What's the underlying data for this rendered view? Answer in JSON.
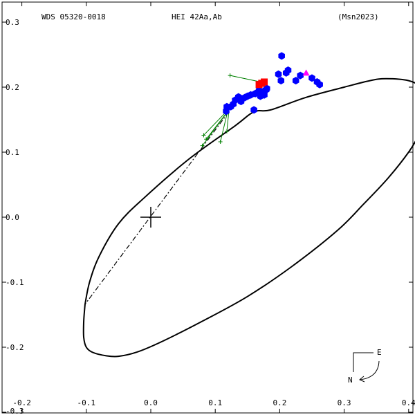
{
  "header": {
    "wds": "WDS 05320-0018",
    "name": "HEI  42Aa,Ab",
    "ref": "(Msn2023)"
  },
  "compass": {
    "east": "E",
    "north": "N"
  },
  "chart_data": {
    "type": "scatter",
    "title": "",
    "xlabel": "",
    "ylabel": "",
    "xlim": [
      -0.2,
      0.4
    ],
    "ylim": [
      -0.3,
      0.3
    ],
    "x_reversed": false,
    "x_ticks": [
      {
        "v": -0.2,
        "label": "-0.2"
      },
      {
        "v": -0.1,
        "label": "-0.1"
      },
      {
        "v": 0.0,
        "label": "0.0"
      },
      {
        "v": 0.1,
        "label": "0.1"
      },
      {
        "v": 0.2,
        "label": "0.2"
      },
      {
        "v": 0.3,
        "label": "0.3"
      },
      {
        "v": 0.4,
        "label": "0.4"
      }
    ],
    "y_ticks": [
      {
        "v": 0.3,
        "label": "0.3"
      },
      {
        "v": 0.2,
        "label": "0.2"
      },
      {
        "v": 0.1,
        "label": "0.1"
      },
      {
        "v": 0.0,
        "label": "0.0"
      },
      {
        "v": -0.1,
        "label": "-0.1"
      },
      {
        "v": -0.2,
        "label": "-0.2"
      },
      {
        "v": -0.3,
        "label": "-0.3"
      }
    ],
    "bottom_left_label": "-0.3",
    "primary": [
      0.0,
      0.0
    ],
    "orbit": {
      "points": [
        [
          -0.102,
          -0.134
        ],
        [
          -0.104,
          -0.16
        ],
        [
          -0.104,
          -0.185
        ],
        [
          -0.1,
          -0.2
        ],
        [
          -0.09,
          -0.208
        ],
        [
          -0.07,
          -0.213
        ],
        [
          -0.05,
          -0.214
        ],
        [
          -0.02,
          -0.207
        ],
        [
          0.02,
          -0.19
        ],
        [
          0.08,
          -0.16
        ],
        [
          0.15,
          -0.122
        ],
        [
          0.22,
          -0.075
        ],
        [
          0.29,
          -0.02
        ],
        [
          0.33,
          0.02
        ],
        [
          0.368,
          0.06
        ],
        [
          0.4,
          0.1
        ],
        [
          0.415,
          0.125
        ],
        [
          0.432,
          0.16
        ],
        [
          0.43,
          0.185
        ],
        [
          0.42,
          0.2
        ],
        [
          0.4,
          0.21
        ],
        [
          0.365,
          0.213
        ],
        [
          0.34,
          0.21
        ],
        [
          0.3,
          0.2
        ],
        [
          0.24,
          0.184
        ],
        [
          0.186,
          0.165
        ],
        [
          0.16,
          0.162
        ],
        [
          0.13,
          0.14
        ],
        [
          0.06,
          0.09
        ],
        [
          -0.01,
          0.03
        ],
        [
          -0.05,
          -0.01
        ],
        [
          -0.08,
          -0.06
        ],
        [
          -0.095,
          -0.1
        ],
        [
          -0.102,
          -0.134
        ]
      ],
      "color": "#000000"
    },
    "line_of_apsides": [
      [
        0.121,
        0.162
      ],
      [
        -0.102,
        -0.134
      ]
    ],
    "series": [
      {
        "marker": "hexagon",
        "color": "#0000ff",
        "points": [
          [
            0.203,
            0.248
          ],
          [
            0.213,
            0.226
          ],
          [
            0.21,
            0.222
          ],
          [
            0.198,
            0.22
          ],
          [
            0.202,
            0.21
          ],
          [
            0.225,
            0.21
          ],
          [
            0.232,
            0.218
          ],
          [
            0.25,
            0.214
          ],
          [
            0.258,
            0.208
          ],
          [
            0.262,
            0.204
          ],
          [
            0.18,
            0.198
          ],
          [
            0.176,
            0.194
          ],
          [
            0.168,
            0.195
          ],
          [
            0.162,
            0.19
          ],
          [
            0.155,
            0.188
          ],
          [
            0.15,
            0.186
          ],
          [
            0.146,
            0.184
          ],
          [
            0.142,
            0.182
          ],
          [
            0.14,
            0.178
          ],
          [
            0.136,
            0.185
          ],
          [
            0.131,
            0.18
          ],
          [
            0.128,
            0.174
          ],
          [
            0.124,
            0.17
          ],
          [
            0.118,
            0.17
          ],
          [
            0.117,
            0.163
          ],
          [
            0.16,
            0.165
          ],
          [
            0.17,
            0.186
          ],
          [
            0.172,
            0.19
          ],
          [
            0.176,
            0.188
          ],
          [
            0.179,
            0.196
          ],
          [
            0.166,
            0.192
          ]
        ]
      },
      {
        "marker": "square",
        "color": "#ff0000",
        "points": [
          [
            0.172,
            0.206
          ],
          [
            0.168,
            0.204
          ],
          [
            0.176,
            0.208
          ]
        ]
      },
      {
        "marker": "triangle",
        "color": "#ff00ff",
        "points": [
          [
            0.241,
            0.222
          ]
        ]
      },
      {
        "marker": "plus",
        "color": "#008000",
        "points": [
          [
            0.123,
            0.218
          ],
          [
            0.082,
            0.126
          ],
          [
            0.086,
            0.12
          ],
          [
            0.08,
            0.11
          ],
          [
            0.108,
            0.116
          ],
          [
            0.118,
            0.132
          ]
        ],
        "residual_to": [
          [
            0.18,
            0.206
          ],
          [
            0.12,
            0.165
          ],
          [
            0.118,
            0.161
          ],
          [
            0.116,
            0.158
          ],
          [
            0.119,
            0.162
          ],
          [
            0.121,
            0.162
          ]
        ]
      }
    ]
  }
}
